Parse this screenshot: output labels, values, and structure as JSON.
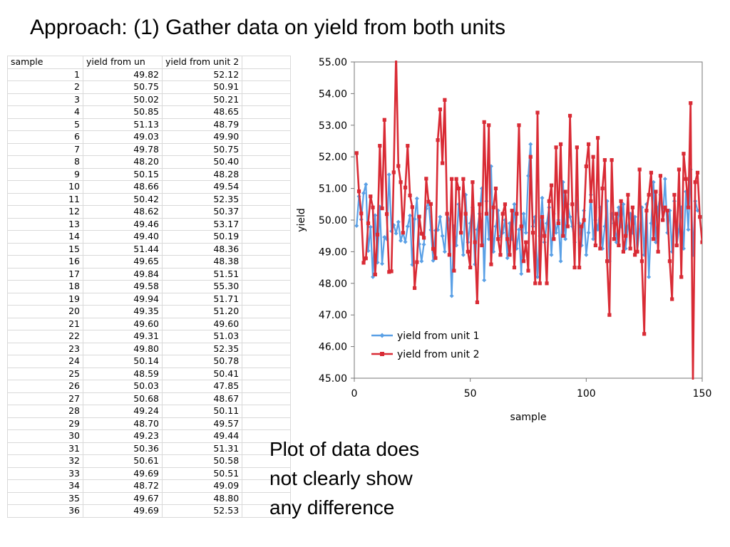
{
  "slide": {
    "title": "Approach: (1) Gather data on yield from both units",
    "note_lines": [
      "Plot of data does",
      "not clearly show",
      "any difference"
    ]
  },
  "spreadsheet": {
    "headers": [
      "sample",
      "yield from un",
      "yield from unit 2"
    ],
    "rows": [
      [
        "1",
        "49.82",
        "52.12"
      ],
      [
        "2",
        "50.75",
        "50.91"
      ],
      [
        "3",
        "50.02",
        "50.21"
      ],
      [
        "4",
        "50.85",
        "48.65"
      ],
      [
        "5",
        "51.13",
        "48.79"
      ],
      [
        "6",
        "49.03",
        "49.90"
      ],
      [
        "7",
        "49.78",
        "50.75"
      ],
      [
        "8",
        "48.20",
        "50.40"
      ],
      [
        "9",
        "50.15",
        "48.28"
      ],
      [
        "10",
        "48.66",
        "49.54"
      ],
      [
        "11",
        "50.42",
        "52.35"
      ],
      [
        "12",
        "48.62",
        "50.37"
      ],
      [
        "13",
        "49.46",
        "53.17"
      ],
      [
        "14",
        "49.40",
        "50.19"
      ],
      [
        "15",
        "51.44",
        "48.36"
      ],
      [
        "16",
        "49.65",
        "48.38"
      ],
      [
        "17",
        "49.84",
        "51.51"
      ],
      [
        "18",
        "49.58",
        "55.30"
      ],
      [
        "19",
        "49.94",
        "51.71"
      ],
      [
        "20",
        "49.35",
        "51.20"
      ],
      [
        "21",
        "49.60",
        "49.60"
      ],
      [
        "22",
        "49.31",
        "51.03"
      ],
      [
        "23",
        "49.80",
        "52.35"
      ],
      [
        "24",
        "50.14",
        "50.78"
      ],
      [
        "25",
        "48.59",
        "50.41"
      ],
      [
        "26",
        "50.03",
        "47.85"
      ],
      [
        "27",
        "50.68",
        "48.67"
      ],
      [
        "28",
        "49.24",
        "50.11"
      ],
      [
        "29",
        "48.70",
        "49.57"
      ],
      [
        "30",
        "49.23",
        "49.44"
      ],
      [
        "31",
        "50.36",
        "51.31"
      ],
      [
        "32",
        "50.61",
        "50.58"
      ],
      [
        "33",
        "49.69",
        "50.51"
      ],
      [
        "34",
        "48.72",
        "49.09"
      ],
      [
        "35",
        "49.67",
        "48.80"
      ],
      [
        "36",
        "49.69",
        "52.53"
      ]
    ]
  },
  "chart_data": {
    "type": "line",
    "xlabel": "sample",
    "ylabel": "yield",
    "xlim": [
      0,
      150
    ],
    "ylim": [
      45,
      55
    ],
    "xticks": [
      "0",
      "50",
      "100",
      "150"
    ],
    "yticks": [
      "45.00",
      "46.00",
      "47.00",
      "48.00",
      "49.00",
      "50.00",
      "51.00",
      "52.00",
      "53.00",
      "54.00",
      "55.00"
    ],
    "legend_position": "bottom-left",
    "grid": false,
    "series": [
      {
        "name": "yield from unit 1",
        "color": "#5aa0e6",
        "marker": "diamond",
        "values": [
          49.82,
          50.75,
          50.02,
          50.85,
          51.13,
          49.03,
          49.78,
          48.2,
          50.15,
          48.66,
          50.42,
          48.62,
          49.46,
          49.4,
          51.44,
          49.65,
          49.84,
          49.58,
          49.94,
          49.35,
          49.6,
          49.31,
          49.8,
          50.14,
          48.59,
          50.03,
          50.68,
          49.24,
          48.7,
          49.23,
          50.36,
          50.61,
          49.69,
          48.72,
          49.67,
          49.69,
          50.1,
          49.5,
          49.0,
          50.2,
          50.0,
          47.6,
          49.8,
          49.2,
          50.5,
          49.6,
          48.9,
          50.8,
          49.3,
          49.9,
          50.4,
          48.6,
          49.7,
          50.2,
          51.0,
          48.1,
          50.6,
          49.4,
          51.7,
          49.0,
          49.8,
          50.3,
          49.5,
          49.6,
          50.0,
          48.8,
          49.9,
          49.4,
          50.5,
          49.1,
          49.7,
          48.3,
          50.2,
          49.6,
          51.4,
          52.4,
          49.8,
          50.1,
          48.2,
          49.5,
          50.7,
          49.3,
          49.9,
          50.4,
          48.9,
          50.2,
          49.6,
          50.0,
          48.7,
          51.2,
          49.4,
          50.5,
          50.1,
          49.8,
          49.3,
          50.6,
          49.9,
          49.2,
          50.3,
          48.9,
          49.6,
          50.8,
          49.4,
          50.0,
          49.7,
          50.4,
          49.1,
          49.8,
          50.6,
          48.7,
          50.2,
          49.9,
          49.3,
          50.4,
          49.8,
          50.5,
          49.1,
          49.8,
          50.2,
          49.6,
          50.1,
          49.0,
          49.7,
          50.4,
          48.9,
          50.5,
          48.2,
          49.9,
          51.2,
          49.3,
          50.4,
          50.8,
          50.0,
          51.3,
          49.6,
          50.3,
          49.0,
          50.6,
          49.2,
          49.7,
          50.4,
          49.1,
          50.9,
          49.7,
          51.6,
          48.9,
          50.6,
          50.3
        ]
      },
      {
        "name": "yield from unit 2",
        "color": "#d92b35",
        "marker": "square",
        "values": [
          52.12,
          50.91,
          50.21,
          48.65,
          48.79,
          49.9,
          50.75,
          50.4,
          48.28,
          49.54,
          52.35,
          50.37,
          53.17,
          50.19,
          48.36,
          48.38,
          51.51,
          55.3,
          51.71,
          51.2,
          49.6,
          51.03,
          52.35,
          50.78,
          50.41,
          47.85,
          48.67,
          50.11,
          49.57,
          49.44,
          51.31,
          50.58,
          50.51,
          49.09,
          48.8,
          52.53,
          53.5,
          51.8,
          53.8,
          50.2,
          48.9,
          51.3,
          48.4,
          51.3,
          51.0,
          49.6,
          51.3,
          50.2,
          49.0,
          48.5,
          51.2,
          49.3,
          47.4,
          50.5,
          49.2,
          53.1,
          50.2,
          53.0,
          48.6,
          50.4,
          51.0,
          49.4,
          48.9,
          50.2,
          50.5,
          49.4,
          48.9,
          50.3,
          48.5,
          50.2,
          53.0,
          49.8,
          48.7,
          49.3,
          48.4,
          52.0,
          49.6,
          48.0,
          53.4,
          48.0,
          50.1,
          49.5,
          48.0,
          50.6,
          51.1,
          49.4,
          52.3,
          49.9,
          52.4,
          49.5,
          50.9,
          49.8,
          53.3,
          50.5,
          48.5,
          52.3,
          48.5,
          49.8,
          50.0,
          51.7,
          52.4,
          50.6,
          52.0,
          49.2,
          52.6,
          49.1,
          51.0,
          51.9,
          48.7,
          47.0,
          51.9,
          49.4,
          50.2,
          49.2,
          50.6,
          49.0,
          49.5,
          50.8,
          49.1,
          50.4,
          48.9,
          49.0,
          51.6,
          48.7,
          46.4,
          50.3,
          50.8,
          51.5,
          49.4,
          50.9,
          49.0,
          51.4,
          50.0,
          50.4,
          50.3,
          48.7,
          47.5,
          50.8,
          49.2,
          51.6,
          48.2,
          52.1,
          51.3,
          50.4,
          53.7,
          44.8,
          51.2,
          51.5,
          50.1,
          49.3
        ]
      }
    ]
  }
}
